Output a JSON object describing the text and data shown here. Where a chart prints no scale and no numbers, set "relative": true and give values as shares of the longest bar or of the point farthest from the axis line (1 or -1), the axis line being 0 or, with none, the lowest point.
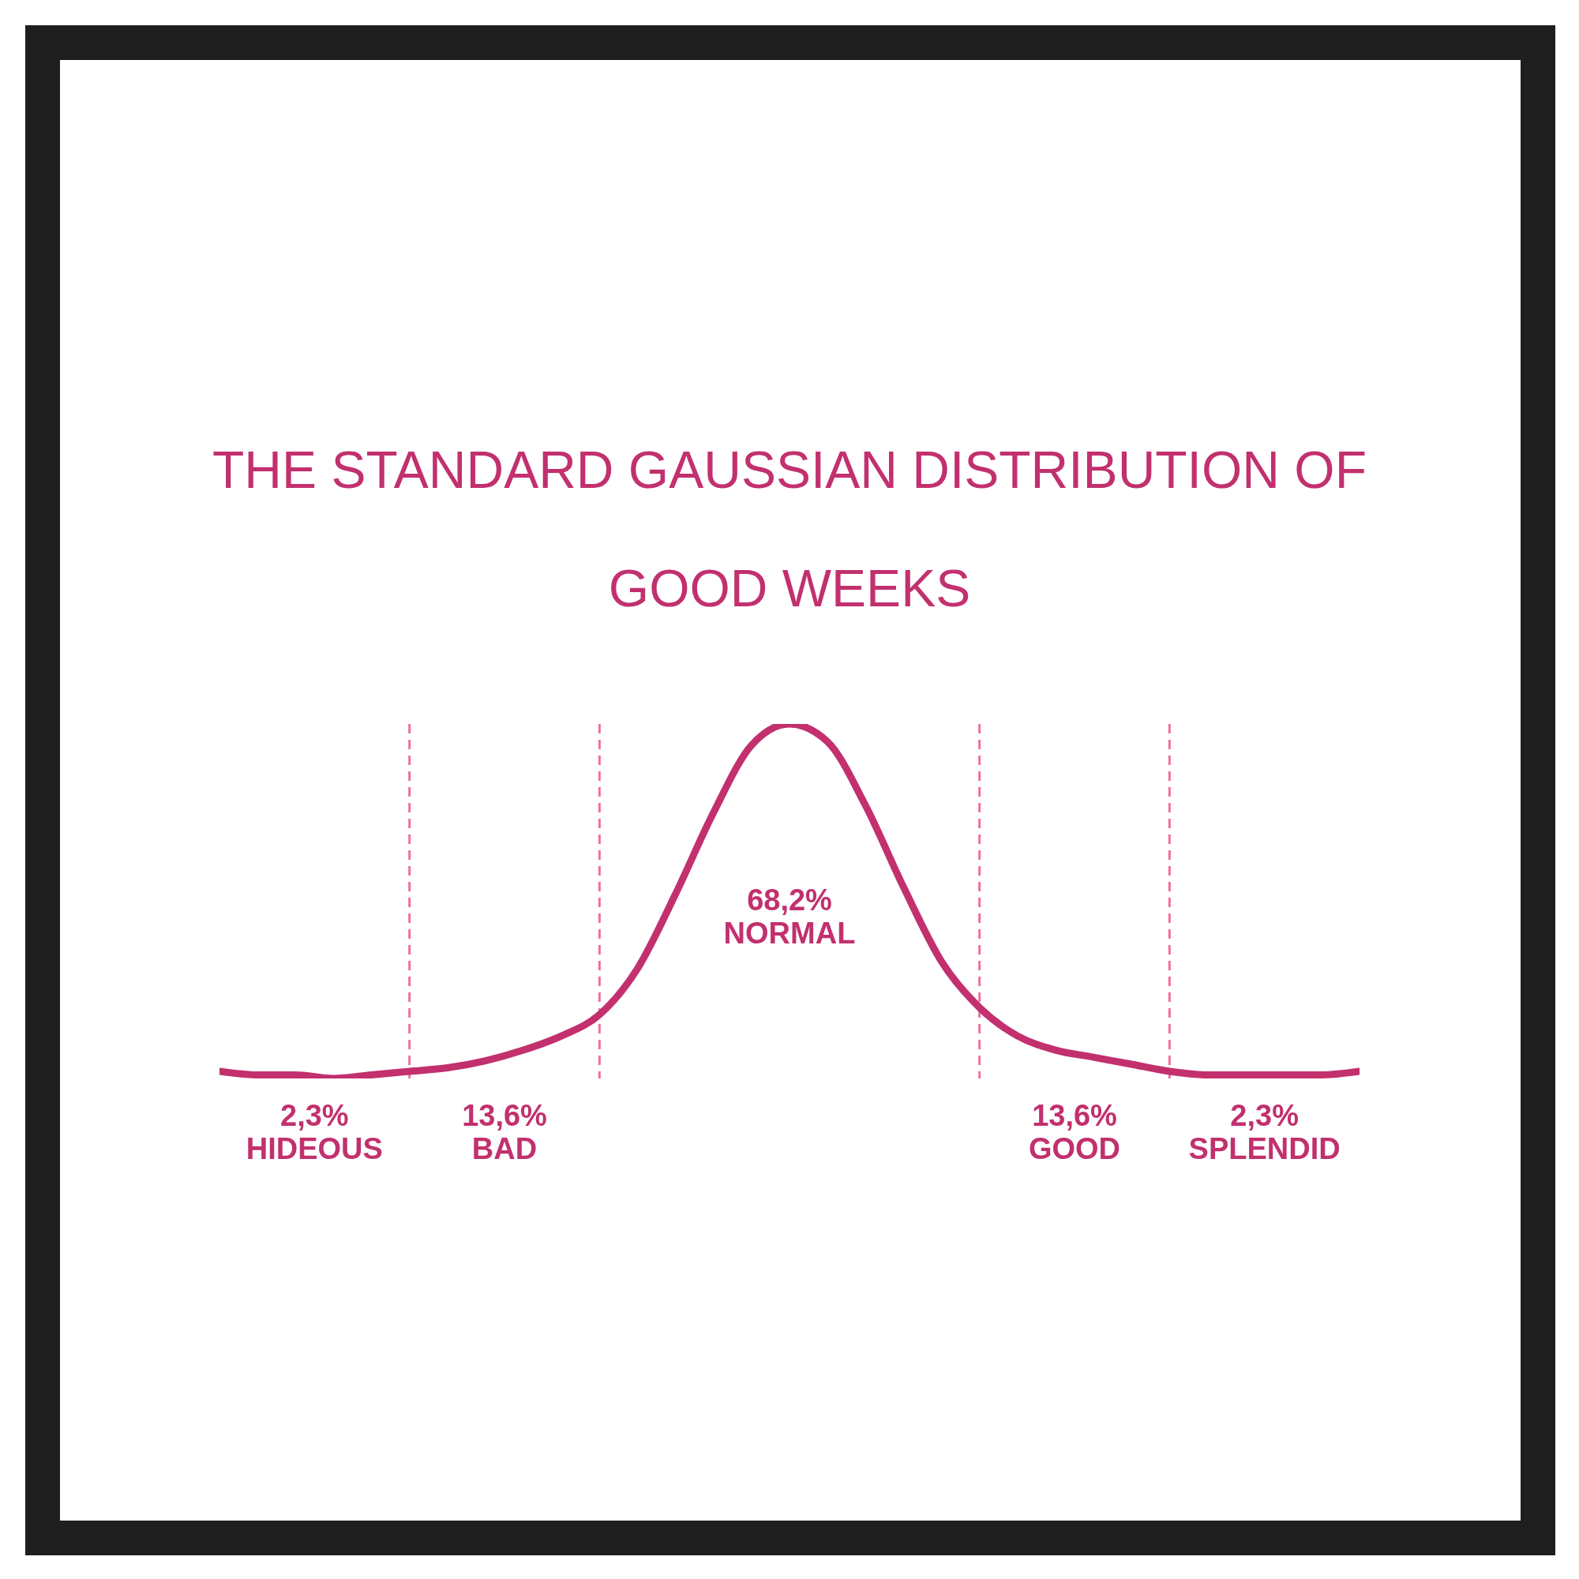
{
  "chart_data": {
    "type": "line",
    "title": "THE STANDARD GAUSSIAN DISTRIBUTION OF GOOD WEEKS",
    "relative": true,
    "categories": [
      null,
      null,
      null,
      null,
      null,
      null,
      null,
      null,
      null,
      null,
      null,
      null,
      null,
      null,
      null,
      null,
      null,
      null,
      null,
      null,
      null,
      null,
      null,
      null,
      null,
      null,
      null,
      null,
      null,
      null,
      null
    ],
    "series": [
      {
        "color": "#c2306e",
        "values": [
          0.02,
          0.01,
          0.01,
          0,
          0.01,
          0.02,
          0.03,
          0.05,
          0.08,
          0.12,
          0.18,
          0.31,
          0.52,
          0.75,
          0.94,
          1,
          0.95,
          0.77,
          0.54,
          0.33,
          0.2,
          0.12,
          0.08,
          0.06,
          0.04,
          0.02,
          0.01,
          0.01,
          0.01,
          0.01,
          0.02
        ]
      }
    ],
    "annotations": [
      "2,3%\nHIDEOUS",
      "13,6%\nBAD",
      "68,2%\nNORMAL",
      "13,6%\nGOOD",
      "2,3%\nSPLENDID"
    ],
    "marker": "none",
    "line_style": "solid",
    "grid": "x"
  }
}
